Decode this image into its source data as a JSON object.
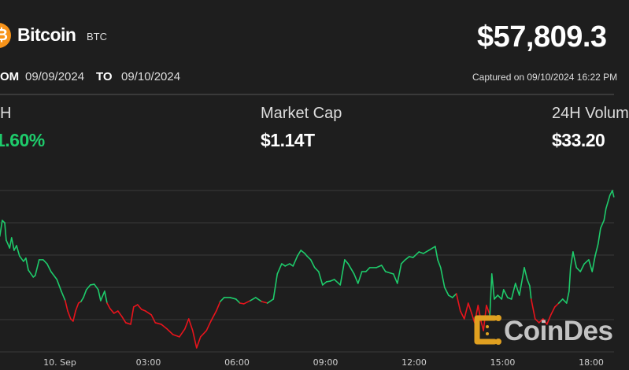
{
  "header": {
    "coin_name": "Bitcoin",
    "coin_symbol": "BTC",
    "price": "$57,809.3",
    "logo_glyph": "₿",
    "logo_color": "#f7931a"
  },
  "date_range": {
    "from_label": "OM",
    "from_value": "09/09/2024",
    "to_label": "TO",
    "to_value": "09/10/2024",
    "captured": "Captured on 09/10/2024 16:22 PM"
  },
  "stats": [
    {
      "label": "H",
      "value": "1.60%",
      "color": "#1ecb6b"
    },
    {
      "label": "Market Cap",
      "value": "$1.14T"
    },
    {
      "label": "24H Volum",
      "value": "$33.20"
    }
  ],
  "watermark": {
    "text": "CoinDes",
    "logo_color": "#e0a020"
  },
  "chart_data": {
    "type": "line",
    "title": "",
    "xlabel": "",
    "ylabel": "",
    "x_tick_labels": [
      "10. Sep",
      "03:00",
      "06:00",
      "09:00",
      "12:00",
      "15:00",
      "18:00"
    ],
    "ylim": [
      56483,
      57816
    ],
    "grid": true,
    "baseline": 56899,
    "colors": {
      "above": "#1ecb6b",
      "below": "#e8141c",
      "grid": "#3a3a3a",
      "background": "#1e1e1e"
    },
    "points": [
      [
        "2024-09-09T21:58",
        57439
      ],
      [
        "2024-09-09T22:03",
        57569
      ],
      [
        "2024-09-09T22:08",
        57549
      ],
      [
        "2024-09-09T22:11",
        57406
      ],
      [
        "2024-09-09T22:18",
        57341
      ],
      [
        "2024-09-09T22:22",
        57426
      ],
      [
        "2024-09-09T22:27",
        57322
      ],
      [
        "2024-09-09T22:32",
        57361
      ],
      [
        "2024-09-09T22:38",
        57276
      ],
      [
        "2024-09-09T22:46",
        57231
      ],
      [
        "2024-09-09T22:51",
        57257
      ],
      [
        "2024-09-09T22:56",
        57159
      ],
      [
        "2024-09-09T23:06",
        57101
      ],
      [
        "2024-09-09T23:10",
        57114
      ],
      [
        "2024-09-09T23:18",
        57244
      ],
      [
        "2024-09-09T23:26",
        57244
      ],
      [
        "2024-09-09T23:34",
        57211
      ],
      [
        "2024-09-09T23:42",
        57146
      ],
      [
        "2024-09-09T23:54",
        57081
      ],
      [
        "2024-09-10T00:03",
        56984
      ],
      [
        "2024-09-10T00:11",
        56906
      ],
      [
        "2024-09-10T00:16",
        56821
      ],
      [
        "2024-09-10T00:22",
        56756
      ],
      [
        "2024-09-10T00:27",
        56737
      ],
      [
        "2024-09-10T00:32",
        56821
      ],
      [
        "2024-09-10T00:38",
        56886
      ],
      [
        "2024-09-10T00:43",
        56899
      ],
      [
        "2024-09-10T00:48",
        56932
      ],
      [
        "2024-09-10T00:54",
        56997
      ],
      [
        "2024-09-10T01:02",
        57036
      ],
      [
        "2024-09-10T01:10",
        57042
      ],
      [
        "2024-09-10T01:18",
        56997
      ],
      [
        "2024-09-10T01:23",
        56906
      ],
      [
        "2024-09-10T01:31",
        56984
      ],
      [
        "2024-09-10T01:36",
        56886
      ],
      [
        "2024-09-10T01:42",
        56841
      ],
      [
        "2024-09-10T01:50",
        56802
      ],
      [
        "2024-09-10T01:58",
        56821
      ],
      [
        "2024-09-10T02:06",
        56776
      ],
      [
        "2024-09-10T02:14",
        56724
      ],
      [
        "2024-09-10T02:24",
        56711
      ],
      [
        "2024-09-10T02:30",
        56854
      ],
      [
        "2024-09-10T02:38",
        56873
      ],
      [
        "2024-09-10T02:46",
        56834
      ],
      [
        "2024-09-10T02:54",
        56821
      ],
      [
        "2024-09-10T03:06",
        56789
      ],
      [
        "2024-09-10T03:14",
        56724
      ],
      [
        "2024-09-10T03:26",
        56711
      ],
      [
        "2024-09-10T03:38",
        56672
      ],
      [
        "2024-09-10T03:50",
        56626
      ],
      [
        "2024-09-10T04:03",
        56607
      ],
      [
        "2024-09-10T04:14",
        56672
      ],
      [
        "2024-09-10T04:22",
        56756
      ],
      [
        "2024-09-10T04:30",
        56659
      ],
      [
        "2024-09-10T04:38",
        56516
      ],
      [
        "2024-09-10T04:46",
        56607
      ],
      [
        "2024-09-10T04:58",
        56659
      ],
      [
        "2024-09-10T05:07",
        56737
      ],
      [
        "2024-09-10T05:18",
        56821
      ],
      [
        "2024-09-10T05:26",
        56899
      ],
      [
        "2024-09-10T05:34",
        56932
      ],
      [
        "2024-09-10T05:46",
        56932
      ],
      [
        "2024-09-10T05:58",
        56919
      ],
      [
        "2024-09-10T06:06",
        56886
      ],
      [
        "2024-09-10T06:14",
        56880
      ],
      [
        "2024-09-10T06:27",
        56906
      ],
      [
        "2024-09-10T06:38",
        56932
      ],
      [
        "2024-09-10T06:50",
        56899
      ],
      [
        "2024-09-10T07:02",
        56886
      ],
      [
        "2024-09-10T07:14",
        56919
      ],
      [
        "2024-09-10T07:22",
        57127
      ],
      [
        "2024-09-10T07:31",
        57211
      ],
      [
        "2024-09-10T07:38",
        57192
      ],
      [
        "2024-09-10T07:47",
        57211
      ],
      [
        "2024-09-10T07:54",
        57192
      ],
      [
        "2024-09-10T08:03",
        57276
      ],
      [
        "2024-09-10T08:10",
        57322
      ],
      [
        "2024-09-10T08:18",
        57296
      ],
      [
        "2024-09-10T08:22",
        57276
      ],
      [
        "2024-09-10T08:30",
        57244
      ],
      [
        "2024-09-10T08:38",
        57179
      ],
      [
        "2024-09-10T08:46",
        57146
      ],
      [
        "2024-09-10T08:54",
        57036
      ],
      [
        "2024-09-10T09:02",
        57062
      ],
      [
        "2024-09-10T09:10",
        57068
      ],
      [
        "2024-09-10T09:18",
        57081
      ],
      [
        "2024-09-10T09:30",
        57036
      ],
      [
        "2024-09-10T09:39",
        57244
      ],
      [
        "2024-09-10T09:46",
        57211
      ],
      [
        "2024-09-10T09:58",
        57127
      ],
      [
        "2024-09-10T10:06",
        57049
      ],
      [
        "2024-09-10T10:14",
        57146
      ],
      [
        "2024-09-10T10:22",
        57146
      ],
      [
        "2024-09-10T10:30",
        57179
      ],
      [
        "2024-09-10T10:43",
        57179
      ],
      [
        "2024-09-10T10:54",
        57198
      ],
      [
        "2024-09-10T11:02",
        57146
      ],
      [
        "2024-09-10T11:18",
        57127
      ],
      [
        "2024-09-10T11:26",
        57049
      ],
      [
        "2024-09-10T11:34",
        57211
      ],
      [
        "2024-09-10T11:42",
        57244
      ],
      [
        "2024-09-10T11:50",
        57270
      ],
      [
        "2024-09-10T11:58",
        57263
      ],
      [
        "2024-09-10T12:10",
        57309
      ],
      [
        "2024-09-10T12:19",
        57296
      ],
      [
        "2024-09-10T12:30",
        57322
      ],
      [
        "2024-09-10T12:43",
        57354
      ],
      [
        "2024-09-10T12:48",
        57244
      ],
      [
        "2024-09-10T12:54",
        57179
      ],
      [
        "2024-09-10T13:02",
        57016
      ],
      [
        "2024-09-10T13:10",
        56951
      ],
      [
        "2024-09-10T13:18",
        56932
      ],
      [
        "2024-09-10T13:26",
        56964
      ],
      [
        "2024-09-10T13:34",
        56821
      ],
      [
        "2024-09-10T13:42",
        56756
      ],
      [
        "2024-09-10T13:50",
        56886
      ],
      [
        "2024-09-10T13:58",
        56789
      ],
      [
        "2024-09-10T14:03",
        56724
      ],
      [
        "2024-09-10T14:10",
        56867
      ],
      [
        "2024-09-10T14:16",
        56737
      ],
      [
        "2024-09-10T14:21",
        56659
      ],
      [
        "2024-09-10T14:27",
        56867
      ],
      [
        "2024-09-10T14:34",
        56789
      ],
      [
        "2024-09-10T14:38",
        57127
      ],
      [
        "2024-09-10T14:43",
        56919
      ],
      [
        "2024-09-10T14:50",
        56951
      ],
      [
        "2024-09-10T14:58",
        56919
      ],
      [
        "2024-09-10T15:02",
        56997
      ],
      [
        "2024-09-10T15:10",
        56932
      ],
      [
        "2024-09-10T15:18",
        56919
      ],
      [
        "2024-09-10T15:26",
        57049
      ],
      [
        "2024-09-10T15:34",
        56951
      ],
      [
        "2024-09-10T15:44",
        57179
      ],
      [
        "2024-09-10T15:50",
        57081
      ],
      [
        "2024-09-10T15:55",
        57029
      ],
      [
        "2024-09-10T15:58",
        56919
      ],
      [
        "2024-09-10T16:06",
        56756
      ],
      [
        "2024-09-10T16:14",
        56724
      ],
      [
        "2024-09-10T16:22",
        56756
      ],
      [
        "2024-09-10T16:30",
        56711
      ],
      [
        "2024-09-10T16:38",
        56789
      ],
      [
        "2024-09-10T16:46",
        56854
      ],
      [
        "2024-09-10T16:54",
        56886
      ],
      [
        "2024-09-10T17:02",
        56919
      ],
      [
        "2024-09-10T17:10",
        56886
      ],
      [
        "2024-09-10T17:15",
        56984
      ],
      [
        "2024-09-10T17:18",
        57179
      ],
      [
        "2024-09-10T17:23",
        57309
      ],
      [
        "2024-09-10T17:30",
        57179
      ],
      [
        "2024-09-10T17:38",
        57146
      ],
      [
        "2024-09-10T17:46",
        57211
      ],
      [
        "2024-09-10T17:55",
        57244
      ],
      [
        "2024-09-10T18:02",
        57146
      ],
      [
        "2024-09-10T18:08",
        57276
      ],
      [
        "2024-09-10T18:14",
        57374
      ],
      [
        "2024-09-10T18:19",
        57504
      ],
      [
        "2024-09-10T18:26",
        57569
      ],
      [
        "2024-09-10T18:30",
        57666
      ],
      [
        "2024-09-10T18:38",
        57777
      ],
      [
        "2024-09-10T18:43",
        57816
      ],
      [
        "2024-09-10T18:46",
        57764
      ]
    ]
  }
}
